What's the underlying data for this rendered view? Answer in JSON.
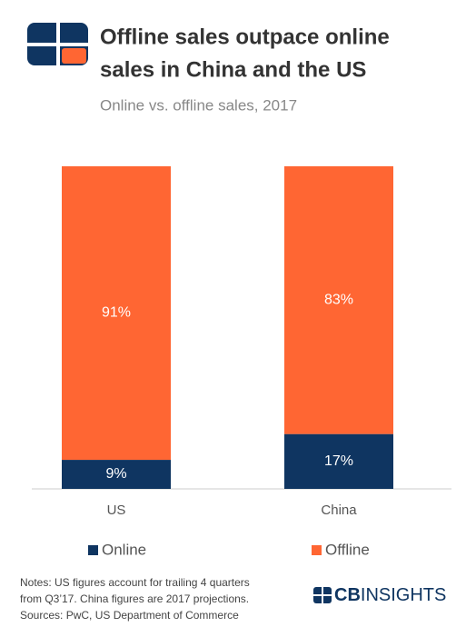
{
  "chart_data": {
    "type": "stacked-bar",
    "title": [
      "Offline sales outpace online",
      "sales in China and the US"
    ],
    "subtitle": "Online vs. offline sales, 2017",
    "categories": [
      "US",
      "China"
    ],
    "series": [
      {
        "name": "Online",
        "color": "#0f3561",
        "values": [
          9,
          17
        ],
        "value_labels": [
          "9%",
          "17%"
        ]
      },
      {
        "name": "Offline",
        "color": "#ff6633",
        "values": [
          91,
          83
        ],
        "value_labels": [
          "91%",
          "83%"
        ]
      }
    ],
    "notes": [
      "Notes: US figures account for trailing 4 quarters",
      "from Q3’17. China figures are 2017 projections.",
      "Sources: PwC, US Department of Commerce"
    ],
    "brand": [
      "CB",
      "INSIGHTS"
    ]
  }
}
